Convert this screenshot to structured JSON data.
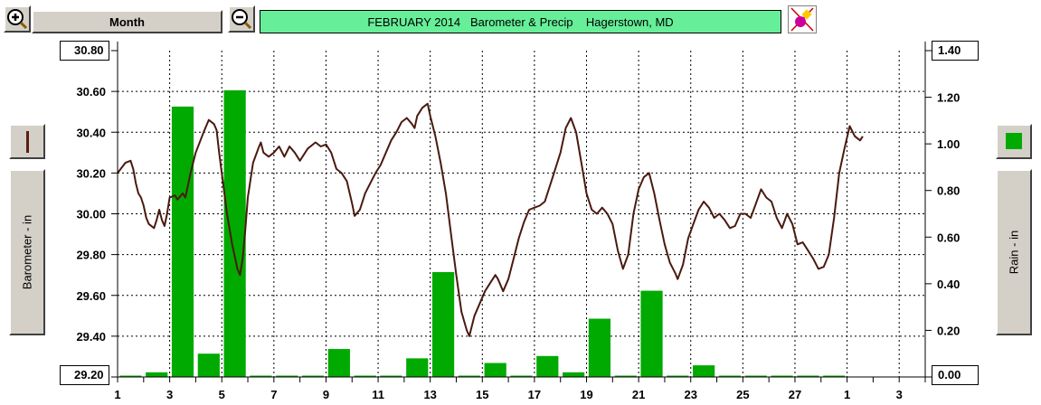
{
  "toolbar": {
    "zoom_in_icon": "zoom-in-icon",
    "zoom_out_icon": "zoom-out-icon",
    "period_label": "Month",
    "title": "FEBRUARY 2014   Barometer & Precip    Hagerstown, MD",
    "tool_icon": "paint-marker-icon"
  },
  "left_panel": {
    "series_swatch_color": "#5a1e14",
    "axis_button_label": "Barometer - in",
    "top_value": "30.80",
    "bottom_value": "29.20"
  },
  "right_panel": {
    "series_swatch_color": "#00aa00",
    "axis_button_label": "Rain - in",
    "top_value": "1.40",
    "bottom_value": "0.00"
  },
  "colors": {
    "barometer_line": "#4a1a10",
    "rain_bars": "#00aa00",
    "title_bg": "#66ee99",
    "grid": "#000000"
  },
  "chart_data": {
    "type": "bar+line",
    "title": "FEBRUARY 2014   Barometer & Precip    Hagerstown, MD",
    "x_ticks": [
      "1",
      "3",
      "5",
      "7",
      "9",
      "11",
      "13",
      "15",
      "17",
      "19",
      "21",
      "23",
      "25",
      "27",
      "1",
      "3"
    ],
    "x_range_days": [
      1,
      32
    ],
    "grid": true,
    "left_axis": {
      "label": "Barometer - in",
      "range": [
        29.2,
        30.8
      ],
      "ticks": [
        "30.80",
        "30.60",
        "30.40",
        "30.20",
        "30.00",
        "29.80",
        "29.60",
        "29.40",
        "29.20"
      ]
    },
    "right_axis": {
      "label": "Rain - in",
      "range": [
        0.0,
        1.4
      ],
      "ticks": [
        "1.40",
        "1.20",
        "1.00",
        "0.80",
        "0.60",
        "0.40",
        "0.20",
        "0.00"
      ]
    },
    "series": [
      {
        "name": "Barometer - in",
        "axis": "left",
        "kind": "line",
        "points": [
          [
            1.0,
            30.2
          ],
          [
            1.3,
            30.25
          ],
          [
            1.5,
            30.26
          ],
          [
            1.6,
            30.22
          ],
          [
            1.7,
            30.15
          ],
          [
            1.8,
            30.1
          ],
          [
            1.9,
            30.08
          ],
          [
            2.0,
            30.04
          ],
          [
            2.1,
            29.98
          ],
          [
            2.2,
            29.95
          ],
          [
            2.4,
            29.93
          ],
          [
            2.5,
            29.97
          ],
          [
            2.6,
            30.02
          ],
          [
            2.7,
            29.97
          ],
          [
            2.8,
            29.94
          ],
          [
            2.9,
            30.0
          ],
          [
            3.0,
            30.08
          ],
          [
            3.2,
            30.09
          ],
          [
            3.3,
            30.07
          ],
          [
            3.5,
            30.1
          ],
          [
            3.6,
            30.08
          ],
          [
            3.8,
            30.2
          ],
          [
            4.0,
            30.3
          ],
          [
            4.3,
            30.4
          ],
          [
            4.5,
            30.46
          ],
          [
            4.7,
            30.44
          ],
          [
            4.8,
            30.41
          ],
          [
            4.9,
            30.3
          ],
          [
            5.0,
            30.2
          ],
          [
            5.2,
            30.0
          ],
          [
            5.4,
            29.85
          ],
          [
            5.6,
            29.73
          ],
          [
            5.7,
            29.7
          ],
          [
            5.8,
            29.78
          ],
          [
            5.9,
            29.92
          ],
          [
            6.0,
            30.08
          ],
          [
            6.2,
            30.25
          ],
          [
            6.4,
            30.32
          ],
          [
            6.5,
            30.35
          ],
          [
            6.6,
            30.3
          ],
          [
            6.8,
            30.28
          ],
          [
            7.0,
            30.3
          ],
          [
            7.2,
            30.33
          ],
          [
            7.4,
            30.28
          ],
          [
            7.6,
            30.33
          ],
          [
            7.8,
            30.3
          ],
          [
            8.0,
            30.26
          ],
          [
            8.3,
            30.32
          ],
          [
            8.6,
            30.35
          ],
          [
            8.8,
            30.33
          ],
          [
            9.0,
            30.34
          ],
          [
            9.2,
            30.3
          ],
          [
            9.4,
            30.22
          ],
          [
            9.6,
            30.2
          ],
          [
            9.8,
            30.16
          ],
          [
            10.0,
            30.05
          ],
          [
            10.1,
            29.99
          ],
          [
            10.3,
            30.02
          ],
          [
            10.5,
            30.1
          ],
          [
            10.7,
            30.15
          ],
          [
            10.9,
            30.2
          ],
          [
            11.1,
            30.24
          ],
          [
            11.3,
            30.3
          ],
          [
            11.5,
            30.36
          ],
          [
            11.7,
            30.4
          ],
          [
            11.9,
            30.45
          ],
          [
            12.1,
            30.47
          ],
          [
            12.3,
            30.44
          ],
          [
            12.4,
            30.42
          ],
          [
            12.5,
            30.48
          ],
          [
            12.7,
            30.52
          ],
          [
            12.9,
            30.54
          ],
          [
            13.0,
            30.48
          ],
          [
            13.2,
            30.38
          ],
          [
            13.4,
            30.25
          ],
          [
            13.6,
            30.1
          ],
          [
            13.8,
            29.9
          ],
          [
            14.0,
            29.7
          ],
          [
            14.2,
            29.52
          ],
          [
            14.4,
            29.43
          ],
          [
            14.5,
            29.4
          ],
          [
            14.7,
            29.5
          ],
          [
            14.9,
            29.56
          ],
          [
            15.1,
            29.62
          ],
          [
            15.3,
            29.66
          ],
          [
            15.5,
            29.7
          ],
          [
            15.6,
            29.68
          ],
          [
            15.8,
            29.62
          ],
          [
            16.0,
            29.68
          ],
          [
            16.2,
            29.78
          ],
          [
            16.4,
            29.88
          ],
          [
            16.6,
            29.96
          ],
          [
            16.8,
            30.02
          ],
          [
            17.0,
            30.03
          ],
          [
            17.2,
            30.04
          ],
          [
            17.4,
            30.06
          ],
          [
            17.5,
            30.1
          ],
          [
            17.7,
            30.18
          ],
          [
            18.0,
            30.3
          ],
          [
            18.2,
            30.42
          ],
          [
            18.4,
            30.47
          ],
          [
            18.6,
            30.4
          ],
          [
            18.8,
            30.25
          ],
          [
            19.0,
            30.1
          ],
          [
            19.2,
            30.02
          ],
          [
            19.4,
            30.0
          ],
          [
            19.6,
            30.03
          ],
          [
            19.8,
            30.0
          ],
          [
            20.0,
            29.95
          ],
          [
            20.2,
            29.82
          ],
          [
            20.4,
            29.73
          ],
          [
            20.6,
            29.8
          ],
          [
            20.8,
            30.0
          ],
          [
            21.0,
            30.12
          ],
          [
            21.2,
            30.18
          ],
          [
            21.4,
            30.2
          ],
          [
            21.6,
            30.1
          ],
          [
            21.8,
            29.97
          ],
          [
            22.0,
            29.85
          ],
          [
            22.2,
            29.76
          ],
          [
            22.4,
            29.71
          ],
          [
            22.5,
            29.68
          ],
          [
            22.7,
            29.75
          ],
          [
            22.9,
            29.88
          ],
          [
            23.1,
            29.95
          ],
          [
            23.3,
            30.02
          ],
          [
            23.5,
            30.06
          ],
          [
            23.7,
            30.03
          ],
          [
            23.9,
            29.98
          ],
          [
            24.1,
            30.0
          ],
          [
            24.3,
            29.97
          ],
          [
            24.5,
            29.93
          ],
          [
            24.7,
            29.94
          ],
          [
            24.9,
            30.0
          ],
          [
            25.1,
            30.0
          ],
          [
            25.3,
            29.98
          ],
          [
            25.5,
            30.05
          ],
          [
            25.7,
            30.12
          ],
          [
            25.9,
            30.08
          ],
          [
            26.1,
            30.06
          ],
          [
            26.3,
            29.98
          ],
          [
            26.5,
            29.93
          ],
          [
            26.7,
            30.0
          ],
          [
            26.9,
            29.95
          ],
          [
            27.1,
            29.85
          ],
          [
            27.3,
            29.86
          ],
          [
            27.5,
            29.82
          ],
          [
            27.7,
            29.78
          ],
          [
            27.9,
            29.73
          ],
          [
            28.1,
            29.74
          ],
          [
            28.3,
            29.8
          ],
          [
            28.5,
            29.98
          ],
          [
            28.7,
            30.2
          ],
          [
            28.9,
            30.32
          ],
          [
            29.1,
            30.43
          ],
          [
            29.3,
            30.38
          ],
          [
            29.5,
            30.36
          ],
          [
            29.6,
            30.38
          ]
        ]
      },
      {
        "name": "Rain - in",
        "axis": "right",
        "kind": "bar",
        "day_values": [
          [
            1,
            0.0
          ],
          [
            2,
            0.02
          ],
          [
            3,
            1.16
          ],
          [
            4,
            0.1
          ],
          [
            5,
            1.23
          ],
          [
            6,
            0.0
          ],
          [
            7,
            0.0
          ],
          [
            8,
            0.0
          ],
          [
            9,
            0.12
          ],
          [
            10,
            0.0
          ],
          [
            11,
            0.0
          ],
          [
            12,
            0.08
          ],
          [
            13,
            0.45
          ],
          [
            14,
            0.0
          ],
          [
            15,
            0.06
          ],
          [
            16,
            0.0
          ],
          [
            17,
            0.09
          ],
          [
            18,
            0.02
          ],
          [
            19,
            0.25
          ],
          [
            20,
            0.0
          ],
          [
            21,
            0.37
          ],
          [
            22,
            0.0
          ],
          [
            23,
            0.05
          ],
          [
            24,
            0.0
          ],
          [
            25,
            0.0
          ],
          [
            26,
            0.0
          ],
          [
            27,
            0.0
          ],
          [
            28,
            0.0
          ]
        ]
      }
    ]
  }
}
